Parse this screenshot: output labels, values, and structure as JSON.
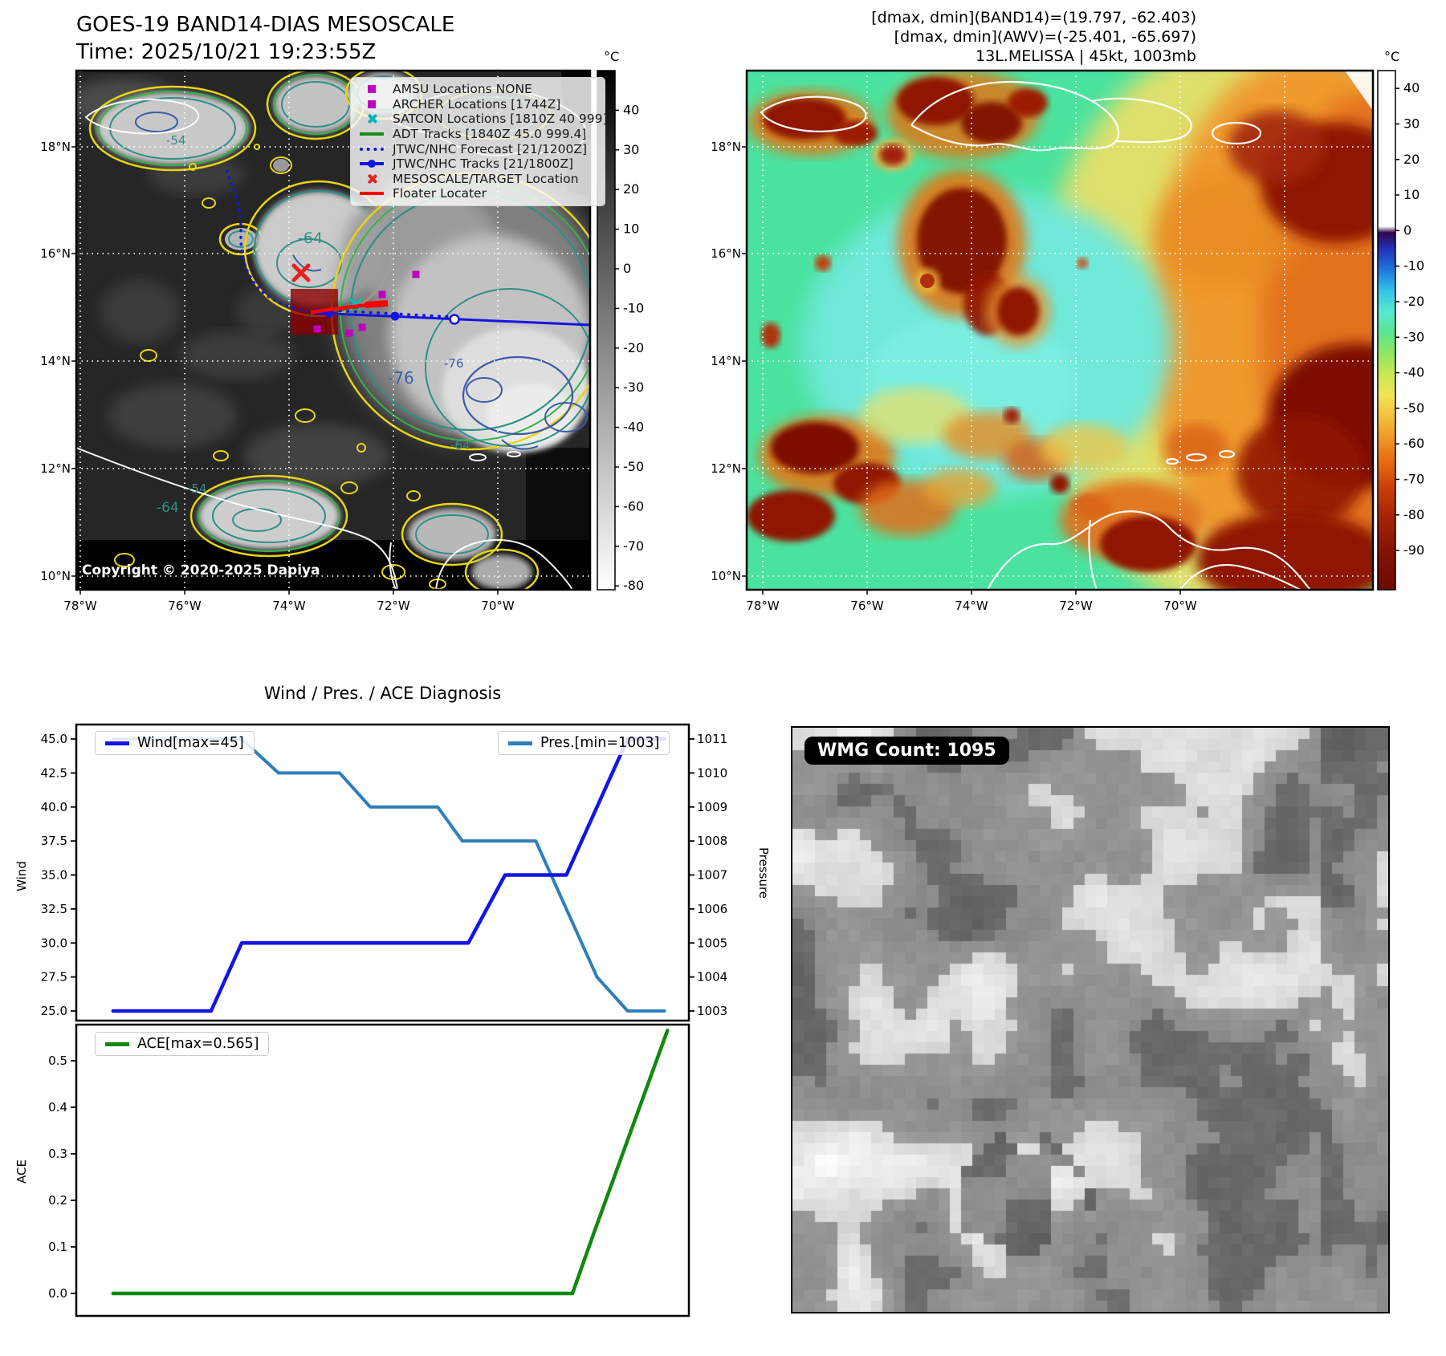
{
  "panel_tl": {
    "title1": "GOES-19 BAND14-DIAS MESOSCALE",
    "title2": "Time: 2025/10/21 19:23:55Z",
    "legend": [
      {
        "marker": "amsu-square",
        "label": "AMSU Locations NONE"
      },
      {
        "marker": "archer-square",
        "label": "ARCHER Locations [1744Z]"
      },
      {
        "marker": "satcon-x",
        "label": "SATCON Locations [1810Z 40 999]"
      },
      {
        "marker": "adt-line",
        "label": "ADT Tracks [1840Z 45.0 999.4]"
      },
      {
        "marker": "forecast-dotted",
        "label": "JTWC/NHC Forecast [21/1200Z]"
      },
      {
        "marker": "track-line-dot",
        "label": "JTWC/NHC Tracks [21/1800Z]"
      },
      {
        "marker": "target-x",
        "label": "MESOSCALE/TARGET Location"
      },
      {
        "marker": "floater-line",
        "label": "Floater Locater"
      }
    ],
    "copyright": "Copyright © 2020-2025 Dapiya",
    "colorbar": {
      "unit": "°C",
      "ticks": [
        "40",
        "30",
        "20",
        "10",
        "0",
        "-10",
        "-20",
        "-30",
        "-40",
        "-50",
        "-60",
        "-70",
        "-80"
      ]
    },
    "contours": {
      "m54": "-54",
      "m64": "-64",
      "m76": "-76"
    }
  },
  "panel_tr": {
    "info1": "[dmax, dmin](BAND14)=(19.797, -62.403)",
    "info2": "[dmax, dmin](AWV)=(-25.401, -65.697)",
    "info3": "13L.MELISSA | 45kt, 1003mb",
    "colorbar": {
      "unit": "°C",
      "ticks": [
        "40",
        "30",
        "20",
        "10",
        "0",
        "-10",
        "-20",
        "-30",
        "-40",
        "-50",
        "-60",
        "-70",
        "-80",
        "-90"
      ]
    }
  },
  "axes": {
    "lat": [
      "18°N",
      "16°N",
      "14°N",
      "12°N",
      "10°N"
    ],
    "lon": [
      "78°W",
      "76°W",
      "74°W",
      "72°W",
      "70°W"
    ]
  },
  "charts": {
    "title": "Wind / Pres. / ACE Diagnosis",
    "wind_legend": "Wind[max=45]",
    "pres_legend": "Pres.[min=1003]",
    "ace_legend": "ACE[max=0.565]",
    "wind_ylabel": "Wind",
    "pres_ylabel": "Pressure",
    "ace_ylabel": "ACE",
    "wind_ticks": [
      "45.0",
      "42.5",
      "40.0",
      "37.5",
      "35.0",
      "32.5",
      "30.0",
      "27.5",
      "25.0"
    ],
    "pres_ticks": [
      "1011",
      "1010",
      "1009",
      "1008",
      "1007",
      "1006",
      "1005",
      "1004",
      "1003"
    ],
    "ace_ticks": [
      "0.5",
      "0.4",
      "0.3",
      "0.2",
      "0.1",
      "0.0"
    ]
  },
  "chart_data": [
    {
      "type": "line",
      "title": "Wind / Pres. / ACE Diagnosis (top panel)",
      "xlabel": "",
      "x_note": "time steps, unlabeled axis, plotted as fraction 0-1",
      "grid": false,
      "series": [
        {
          "name": "Wind[max=45]",
          "color": "#1414e6",
          "yaxis": "Wind",
          "ylim": [
            25,
            45
          ],
          "points": [
            [
              0.06,
              25
            ],
            [
              0.22,
              25
            ],
            [
              0.27,
              30
            ],
            [
              0.64,
              30
            ],
            [
              0.7,
              35
            ],
            [
              0.8,
              35
            ],
            [
              0.9,
              45
            ],
            [
              0.96,
              45
            ]
          ]
        },
        {
          "name": "Pres.[min=1003]",
          "color": "#2e7ebc",
          "yaxis": "Pressure",
          "ylim": [
            1003,
            1011
          ],
          "points": [
            [
              0.06,
              1011
            ],
            [
              0.27,
              1011
            ],
            [
              0.33,
              1010
            ],
            [
              0.43,
              1010
            ],
            [
              0.48,
              1009
            ],
            [
              0.59,
              1009
            ],
            [
              0.63,
              1008
            ],
            [
              0.75,
              1008
            ],
            [
              0.85,
              1004
            ],
            [
              0.9,
              1003
            ],
            [
              0.96,
              1003
            ]
          ]
        }
      ]
    },
    {
      "type": "line",
      "title": "ACE (bottom panel)",
      "xlabel": "",
      "grid": false,
      "series": [
        {
          "name": "ACE[max=0.565]",
          "color": "#0f8a0f",
          "yaxis": "ACE",
          "ylim": [
            0,
            0.565
          ],
          "points": [
            [
              0.06,
              0
            ],
            [
              0.81,
              0
            ],
            [
              0.845,
              0.13
            ],
            [
              0.965,
              0.565
            ]
          ]
        }
      ]
    }
  ],
  "wmg": {
    "label": "WMG Count: 1095",
    "count": 1095,
    "grid": {
      "cols": 53,
      "rows": 52,
      "cell": 14,
      "seed": 11
    }
  },
  "colors": {
    "wind_line": "#1414e6",
    "pres_line": "#2e7ebc",
    "ace_line": "#0f8a0f",
    "amsu_marker": "#bf00bf",
    "satcon_marker": "#00b5b5",
    "adt_track": "#1a8a1a",
    "jtwc_track": "#1414e6",
    "target_marker": "#e62020",
    "floater_line": "#ff0000",
    "contour_54_64": "#2f8f85",
    "contour_76": "#3c5ba8",
    "contour_yellow": "#e8d50e",
    "contour_green": "#35b44a",
    "awv_background": "#4be29f"
  }
}
